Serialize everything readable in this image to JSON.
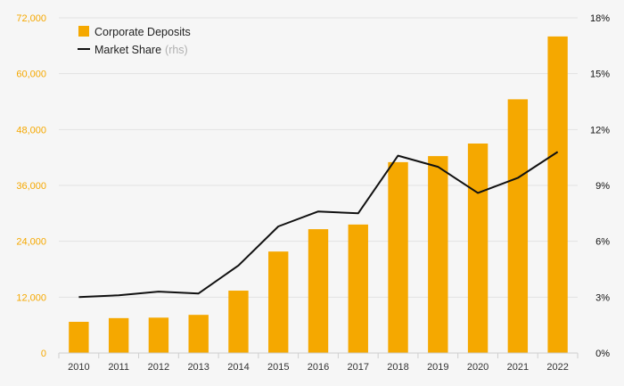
{
  "chart_data": {
    "type": "bar",
    "categories": [
      "2010",
      "2011",
      "2012",
      "2013",
      "2014",
      "2015",
      "2016",
      "2017",
      "2018",
      "2019",
      "2020",
      "2021",
      "2022"
    ],
    "series": [
      {
        "name": "Corporate Deposits",
        "type": "bar",
        "axis": "left",
        "color": "#f5a800",
        "values": [
          6700,
          7500,
          7600,
          8200,
          13400,
          21800,
          26600,
          27600,
          41000,
          42300,
          45000,
          54500,
          68000
        ]
      },
      {
        "name": "Market Share",
        "name_note": "(rhs)",
        "type": "line",
        "axis": "right",
        "color": "#111111",
        "values": [
          3.0,
          3.1,
          3.3,
          3.2,
          4.7,
          6.8,
          7.6,
          7.5,
          10.6,
          10.0,
          8.6,
          9.4,
          10.8
        ]
      }
    ],
    "y_left": {
      "min": 0,
      "max": 72000,
      "ticks": [
        0,
        12000,
        24000,
        36000,
        48000,
        60000,
        72000
      ],
      "tick_labels": [
        "0",
        "12,000",
        "24,000",
        "36,000",
        "48,000",
        "60,000",
        "72,000"
      ],
      "color": "#f5a800"
    },
    "y_right": {
      "min": 0,
      "max": 18,
      "ticks": [
        0,
        3,
        6,
        9,
        12,
        15,
        18
      ],
      "tick_labels": [
        "0%",
        "3%",
        "6%",
        "9%",
        "12%",
        "15%",
        "18%"
      ],
      "color": "#111111"
    },
    "grid": true,
    "legend_position": "top-left",
    "title": "",
    "xlabel": "",
    "ylabel": ""
  }
}
